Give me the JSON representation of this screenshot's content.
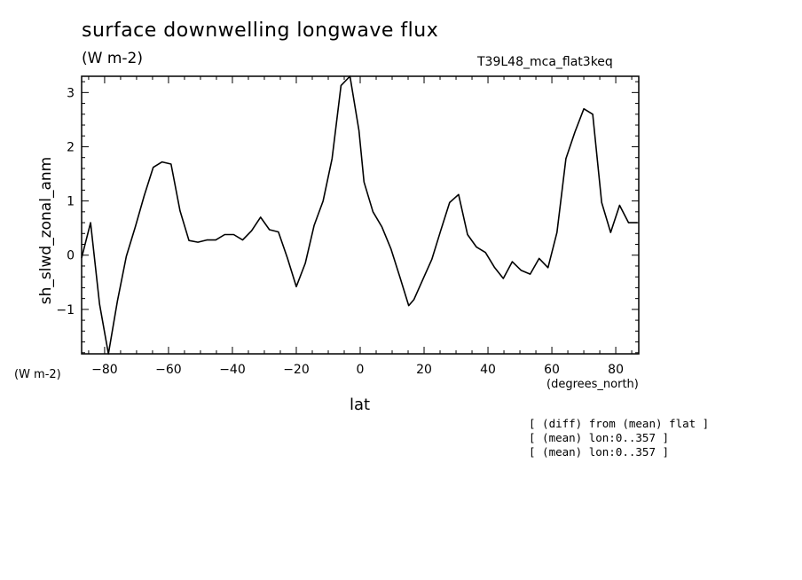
{
  "header": {
    "title": "surface downwelling longwave flux",
    "units": "(W m-2)",
    "run": "T39L48_mca_flat3keq"
  },
  "axes": {
    "ylabel": "sh_slwd_zonal_anm",
    "yunits": "(W m-2)",
    "xlabel": "lat",
    "xunits": "(degrees_north)"
  },
  "notes": [
    "[ (diff) from (mean) flat ]",
    "[ (mean) lon:0..357 ]",
    "[ (mean) lon:0..357 ]"
  ],
  "chart_data": {
    "type": "line",
    "xlabel": "lat",
    "ylabel": "sh_slwd_zonal_anm",
    "xlim": [
      -87.2,
      87.2
    ],
    "ylim": [
      -1.82,
      3.3
    ],
    "x_ticks": [
      -80,
      -60,
      -40,
      -20,
      0,
      20,
      40,
      60,
      80
    ],
    "y_ticks": [
      -1,
      0,
      1,
      2,
      3
    ],
    "grid": false,
    "series": [
      {
        "x": [
          -87.2,
          -84.4,
          -81.6,
          -78.8,
          -76.0,
          -73.2,
          -70.4,
          -67.6,
          -64.8,
          -62.0,
          -59.2,
          -56.4,
          -53.6,
          -50.8,
          -48.0,
          -45.2,
          -42.4,
          -39.6,
          -36.8,
          -34.0,
          -31.2,
          -28.4,
          -25.6,
          -22.8,
          -20.0,
          -17.2,
          -14.4,
          -11.6,
          -8.8,
          -6.0,
          -3.2,
          -0.4,
          1.2,
          4.0,
          6.8,
          9.6,
          12.4,
          15.2,
          16.8,
          19.6,
          22.4,
          25.2,
          28.0,
          30.8,
          33.6,
          36.4,
          39.2,
          42.0,
          44.8,
          47.6,
          50.4,
          53.2,
          56.0,
          58.8,
          61.6,
          64.4,
          67.2,
          70.0,
          72.8,
          75.6,
          78.4,
          81.2,
          84.0,
          86.8
        ],
        "y": [
          -0.05,
          0.6,
          -0.9,
          -1.82,
          -0.85,
          -0.02,
          0.52,
          1.1,
          1.62,
          1.72,
          1.68,
          0.82,
          0.27,
          0.24,
          0.28,
          0.28,
          0.38,
          0.38,
          0.28,
          0.45,
          0.7,
          0.47,
          0.43,
          -0.05,
          -0.58,
          -0.15,
          0.55,
          1.0,
          1.78,
          3.13,
          3.3,
          2.3,
          1.35,
          0.8,
          0.52,
          0.12,
          -0.4,
          -0.93,
          -0.82,
          -0.45,
          -0.08,
          0.45,
          0.97,
          1.12,
          0.38,
          0.15,
          0.05,
          -0.22,
          -0.43,
          -0.12,
          -0.28,
          -0.35,
          -0.06,
          -0.23,
          0.42,
          1.78,
          2.27,
          2.7,
          2.6,
          0.97,
          0.42,
          0.92,
          0.6,
          0.6
        ]
      }
    ]
  }
}
